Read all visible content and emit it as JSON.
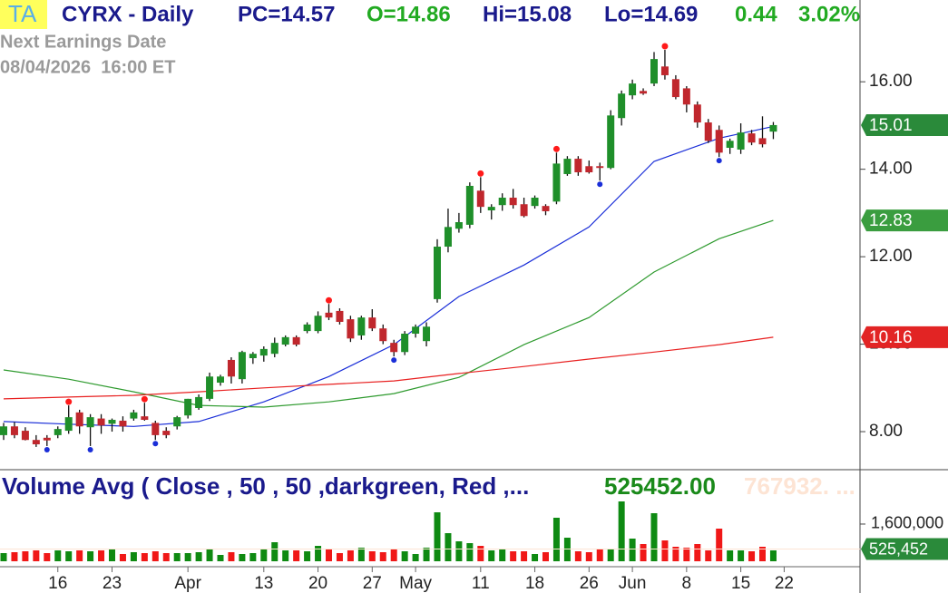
{
  "header": {
    "badge": "TA",
    "symbol": "CYRX - Daily",
    "prev_close": "PC=14.57",
    "open": "O=14.86",
    "high": "Hi=15.08",
    "low": "Lo=14.69",
    "change": "0.44",
    "change_pct": "3.02%",
    "earnings_label": "Next Earnings Date",
    "earnings_date": "08/04/2026  16:00 ET"
  },
  "chart_data": [
    {
      "type": "candlestick",
      "categories": [
        null,
        null,
        null,
        null,
        null,
        "16",
        null,
        null,
        null,
        null,
        "23",
        null,
        null,
        null,
        null,
        null,
        null,
        "Apr",
        null,
        null,
        null,
        null,
        null,
        null,
        "13",
        null,
        null,
        null,
        null,
        "20",
        null,
        null,
        null,
        null,
        "27",
        null,
        null,
        null,
        "May",
        null,
        null,
        null,
        null,
        null,
        "11",
        null,
        null,
        null,
        null,
        "18",
        null,
        null,
        null,
        null,
        "26",
        null,
        null,
        null,
        "Jun",
        null,
        null,
        null,
        null,
        "8",
        null,
        null,
        null,
        null,
        "15",
        null,
        null,
        null,
        "22"
      ],
      "open": [
        7.92,
        8.12,
        8.02,
        7.81,
        7.86,
        7.92,
        8.02,
        8.44,
        8.1,
        8.3,
        8.18,
        8.25,
        8.3,
        8.35,
        8.2,
        8.02,
        8.12,
        8.37,
        8.54,
        8.75,
        9.12,
        9.64,
        9.2,
        9.68,
        9.74,
        9.78,
        9.99,
        10.16,
        10.3,
        10.3,
        10.72,
        10.76,
        10.57,
        10.2,
        10.61,
        10.36,
        10.03,
        9.82,
        10.24,
        10.07,
        11.03,
        12.23,
        12.64,
        12.73,
        13.51,
        13.06,
        13.18,
        13.35,
        13.2,
        13.16,
        13.16,
        13.26,
        13.89,
        14.24,
        14.07,
        14.07,
        14.03,
        15.17,
        15.69,
        15.79,
        15.96,
        16.35,
        16.06,
        15.85,
        15.48,
        15.07,
        14.9,
        14.49,
        14.45,
        14.82,
        14.71,
        14.86,
        null
      ],
      "high": [
        8.2,
        8.22,
        8.1,
        7.92,
        7.92,
        8.12,
        8.6,
        8.5,
        8.4,
        8.4,
        8.3,
        8.35,
        8.5,
        8.66,
        8.25,
        8.1,
        8.36,
        8.75,
        8.85,
        9.35,
        9.3,
        9.7,
        9.85,
        9.82,
        9.95,
        10.15,
        10.2,
        10.2,
        10.5,
        10.75,
        10.92,
        10.82,
        10.65,
        10.65,
        10.8,
        10.45,
        10.1,
        10.3,
        10.45,
        10.5,
        12.4,
        13.1,
        13.0,
        13.7,
        13.82,
        13.2,
        13.45,
        13.55,
        13.35,
        13.4,
        13.2,
        14.38,
        14.3,
        14.3,
        14.2,
        14.15,
        15.35,
        15.8,
        16.05,
        15.85,
        16.68,
        16.73,
        16.15,
        15.9,
        15.55,
        15.15,
        15.0,
        14.7,
        15.05,
        14.9,
        15.21,
        15.08,
        null
      ],
      "low": [
        7.81,
        7.85,
        7.8,
        7.65,
        7.67,
        7.85,
        7.95,
        7.95,
        7.67,
        7.95,
        8.0,
        8.0,
        8.25,
        8.25,
        7.81,
        7.85,
        8.05,
        8.3,
        8.5,
        8.7,
        9.05,
        9.1,
        9.1,
        9.55,
        9.6,
        9.7,
        9.95,
        9.95,
        10.25,
        10.25,
        10.55,
        10.45,
        10.05,
        10.1,
        10.3,
        10.0,
        9.72,
        9.75,
        10.15,
        9.95,
        10.95,
        12.1,
        12.55,
        12.65,
        13.0,
        12.85,
        13.05,
        13.1,
        12.9,
        13.1,
        12.95,
        13.2,
        13.85,
        13.85,
        13.9,
        13.74,
        14.0,
        15.0,
        15.6,
        15.7,
        15.9,
        16.05,
        15.6,
        15.3,
        14.95,
        14.6,
        14.28,
        14.35,
        14.35,
        14.55,
        14.5,
        14.69,
        null
      ],
      "close": [
        8.12,
        7.92,
        7.81,
        7.71,
        7.8,
        8.06,
        8.33,
        8.12,
        8.33,
        8.14,
        8.27,
        8.12,
        8.44,
        8.27,
        7.92,
        7.92,
        8.33,
        8.75,
        8.79,
        9.26,
        9.26,
        9.26,
        9.82,
        9.78,
        9.89,
        10.03,
        10.16,
        9.99,
        10.45,
        10.65,
        10.61,
        10.51,
        10.13,
        10.61,
        10.36,
        10.07,
        9.82,
        10.24,
        10.4,
        10.4,
        12.23,
        12.68,
        12.79,
        13.62,
        13.14,
        13.14,
        13.35,
        13.18,
        12.93,
        13.35,
        13.04,
        14.13,
        14.24,
        13.93,
        13.93,
        14.03,
        15.23,
        15.73,
        15.96,
        15.73,
        16.52,
        16.15,
        15.65,
        15.48,
        15.07,
        14.65,
        14.38,
        14.65,
        14.84,
        14.61,
        14.57,
        15.01,
        null
      ],
      "up_color": "#1f8f2a",
      "down_color": "#c0272d",
      "wick_color": "#111111",
      "swing_high_marks": [
        6,
        13,
        30,
        44,
        51,
        61
      ],
      "swing_high_color": "#ff1a1a",
      "swing_low_marks": [
        4,
        8,
        14,
        36,
        55,
        66
      ],
      "swing_low_color": "#1a2ed8",
      "close_tag_color": "#2a8a3a",
      "ylim": [
        7.13,
        17.87
      ],
      "yticks": [
        {
          "value": 8,
          "label": "8.00"
        },
        {
          "value": 10,
          "label": "10.00"
        },
        {
          "value": 12,
          "label": "12.00"
        },
        {
          "value": 14,
          "label": "14.00"
        },
        {
          "value": 16,
          "label": "16.00"
        }
      ],
      "moving_averages": [
        {
          "color": "#1a2ed8",
          "x": [
            0,
            6,
            12,
            18,
            24,
            30,
            36,
            42,
            48,
            54,
            60,
            66,
            71
          ],
          "values": [
            8.23,
            8.17,
            8.12,
            8.23,
            8.68,
            9.26,
            9.99,
            11.09,
            11.81,
            12.68,
            14.18,
            14.71,
            14.98
          ]
        },
        {
          "color": "#2e9a2e",
          "tag_color": "#3a9d3f",
          "x": [
            0,
            6,
            12,
            18,
            24,
            30,
            36,
            42,
            48,
            54,
            60,
            66,
            71
          ],
          "values": [
            9.41,
            9.2,
            8.91,
            8.6,
            8.56,
            8.68,
            8.87,
            9.24,
            9.99,
            10.61,
            11.65,
            12.41,
            12.83
          ]
        },
        {
          "color": "#e82020",
          "tag_color": "#e22424",
          "x": [
            0,
            6,
            12,
            18,
            24,
            30,
            36,
            42,
            48,
            54,
            60,
            66,
            71
          ],
          "values": [
            8.75,
            8.79,
            8.83,
            8.91,
            9.0,
            9.08,
            9.16,
            9.33,
            9.49,
            9.66,
            9.82,
            9.99,
            10.16
          ]
        }
      ]
    },
    {
      "type": "bar",
      "title": "Volume Avg ( Close , 50 , 50 ,darkgreen, Red ,...",
      "avg_label": "525452.00",
      "faded_label": "767932. ...",
      "values": [
        351000,
        390000,
        429000,
        468000,
        351000,
        468000,
        429000,
        468000,
        429000,
        468000,
        507000,
        312000,
        390000,
        351000,
        429000,
        351000,
        351000,
        351000,
        390000,
        546000,
        273000,
        390000,
        312000,
        351000,
        507000,
        819000,
        468000,
        468000,
        429000,
        663000,
        507000,
        351000,
        468000,
        585000,
        429000,
        390000,
        507000,
        429000,
        312000,
        585000,
        2106000,
        1209000,
        858000,
        780000,
        663000,
        468000,
        507000,
        429000,
        429000,
        312000,
        390000,
        1872000,
        1014000,
        429000,
        390000,
        507000,
        507000,
        2574000,
        975000,
        741000,
        2067000,
        897000,
        624000,
        585000,
        741000,
        468000,
        1404000,
        468000,
        468000,
        429000,
        624000,
        468000,
        null
      ],
      "up_color": "#0e8a12",
      "down_color": "#f01818",
      "avg_tag_color": "#2a8a3a",
      "ylim": [
        0,
        3822000
      ],
      "yticks": [
        {
          "value": 1600000,
          "label": "1,600,000"
        }
      ],
      "avg": {
        "value": 525452,
        "label": "525,452"
      }
    }
  ]
}
